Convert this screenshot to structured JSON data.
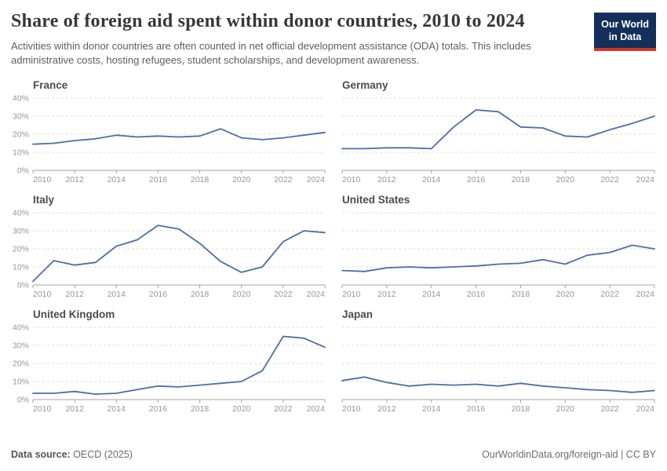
{
  "header": {
    "title": "Share of foreign aid spent within donor countries, 2010 to 2024",
    "subtitle": "Activities within donor countries are often counted in net official development assistance (ODA) totals. This includes administrative costs, hosting refugees, student scholarships, and development awareness.",
    "logo": {
      "line1": "Our World",
      "line2": "in Data"
    }
  },
  "footer": {
    "datasource_label": "Data source:",
    "datasource_value": " OECD (2025)",
    "credit": "OurWorldinData.org/foreign-aid | CC BY"
  },
  "colors": {
    "line": "#4c6ea8",
    "grid": "#dcdcdc",
    "axis": "#a3a3a3",
    "tick_label": "#969696",
    "logo_bg": "#12305b",
    "logo_stripe": "#d0342c"
  },
  "chart_data": {
    "type": "line",
    "title": "Share of foreign aid spent within donor countries, 2010 to 2024",
    "x": [
      2010,
      2011,
      2012,
      2013,
      2014,
      2015,
      2016,
      2017,
      2018,
      2019,
      2020,
      2021,
      2022,
      2023,
      2024
    ],
    "x_ticks": [
      2010,
      2012,
      2014,
      2016,
      2018,
      2020,
      2022,
      2024
    ],
    "ylim": [
      0,
      40
    ],
    "y_ticks": [
      0,
      10,
      20,
      30,
      40
    ],
    "y_tick_suffix": "%",
    "grid": true,
    "legend": "none",
    "series": [
      {
        "name": "France",
        "values": [
          14.5,
          15,
          16.5,
          17.5,
          19.5,
          18.5,
          19,
          18.5,
          19,
          23,
          18,
          17,
          18,
          19.5,
          21
        ]
      },
      {
        "name": "Germany",
        "values": [
          12,
          12,
          12.5,
          12.5,
          12,
          24,
          33.5,
          32.5,
          24,
          23.5,
          19,
          18.5,
          22.5,
          26,
          30
        ]
      },
      {
        "name": "Italy",
        "values": [
          2,
          13.5,
          11,
          12.5,
          21.5,
          25,
          33,
          31,
          23,
          13,
          7,
          10,
          24,
          30,
          29
        ]
      },
      {
        "name": "United States",
        "values": [
          8,
          7.5,
          9.5,
          10,
          9.5,
          10,
          10.5,
          11.5,
          12,
          14,
          11.5,
          16.5,
          18,
          22,
          20
        ]
      },
      {
        "name": "United Kingdom",
        "values": [
          3.5,
          3.5,
          4.5,
          3,
          3.5,
          5.5,
          7.5,
          7,
          8,
          9,
          10,
          16,
          35,
          34,
          29
        ]
      },
      {
        "name": "Japan",
        "values": [
          10.5,
          12.5,
          9.5,
          7.5,
          8.5,
          8,
          8.5,
          7.5,
          9,
          7.5,
          6.5,
          5.5,
          5,
          4,
          5
        ]
      }
    ]
  }
}
